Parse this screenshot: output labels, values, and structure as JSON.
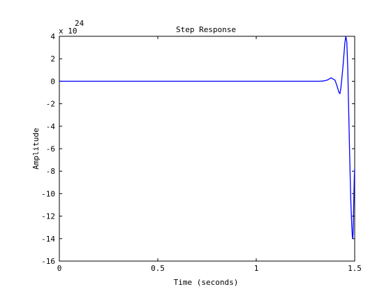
{
  "colors": {
    "background": "#ffffff",
    "axes": "#000000",
    "series": "#0000ff"
  },
  "chart_data": {
    "type": "line",
    "title": "Step Response",
    "xlabel": "Time (seconds)",
    "ylabel": "Amplitude",
    "exponent_label": "x 10",
    "exponent_power": "24",
    "xlim": [
      0,
      1.5
    ],
    "ylim": [
      -16,
      4
    ],
    "y_scale": "x 10^24",
    "grid": false,
    "legend": "none",
    "xticks": [
      0,
      0.5,
      1,
      1.5
    ],
    "xtick_labels": [
      "0",
      "0.5",
      "1",
      "1.5"
    ],
    "yticks": [
      4,
      2,
      0,
      -2,
      -4,
      -6,
      -8,
      -10,
      -12,
      -14,
      -16
    ],
    "ytick_labels": [
      "4",
      "2",
      "0",
      "-2",
      "-4",
      "-6",
      "-8",
      "-10",
      "-12",
      "-14",
      "-16"
    ],
    "series": [
      {
        "color": "#0000ff",
        "x": [
          0,
          0.2,
          0.4,
          0.6,
          0.8,
          1.0,
          1.2,
          1.32,
          1.34,
          1.36,
          1.38,
          1.4,
          1.41,
          1.42,
          1.425,
          1.43,
          1.44,
          1.45,
          1.455,
          1.46,
          1.465,
          1.47,
          1.475,
          1.48,
          1.485,
          1.488,
          1.49,
          1.492,
          1.495,
          1.498,
          1.5
        ],
        "y": [
          0,
          0,
          0,
          0,
          0,
          0,
          0,
          0,
          0.02,
          0.1,
          0.3,
          0.1,
          -0.4,
          -1.0,
          -1.1,
          -0.6,
          1.2,
          3.4,
          4.0,
          3.5,
          1.0,
          -3.0,
          -7.0,
          -10.5,
          -12.8,
          -13.8,
          -14.0,
          -13.5,
          -11.0,
          -8.5,
          -7.8
        ]
      }
    ]
  }
}
